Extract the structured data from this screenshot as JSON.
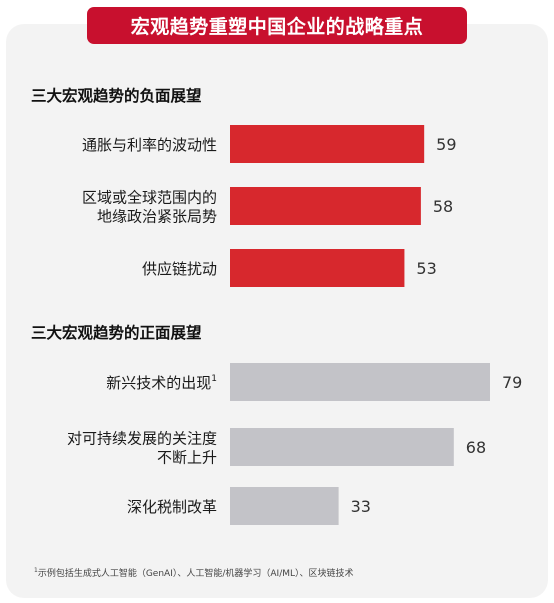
{
  "title": "宏观趋势重塑中国企业的战略重点",
  "footnote": "示例包括生成式人工智能（GenAI）、人工智能/机器学习（AI/ML）、区块链技术",
  "footnote_marker": "1",
  "colors": {
    "brand_red": "#c8102e",
    "negative_bar": "#d7282d",
    "positive_bar": "#c3c3c8",
    "card_bg": "#f3f3f3"
  },
  "chart_data": [
    {
      "type": "bar",
      "orientation": "horizontal",
      "title": "三大宏观趋势的负面展望",
      "categories": [
        "通胀与利率的波动性",
        "区域或全球范围内的\n地缘政治紧张局势",
        "供应链扰动"
      ],
      "values": [
        59,
        58,
        53
      ],
      "xlim": [
        0,
        80
      ],
      "grid": false,
      "data_labels": true
    },
    {
      "type": "bar",
      "orientation": "horizontal",
      "title": "三大宏观趋势的正面展望",
      "categories": [
        "新兴技术的出现",
        "对可持续发展的关注度\n不断上升",
        "深化税制改革"
      ],
      "category_footnotes": [
        "1",
        "",
        ""
      ],
      "values": [
        79,
        68,
        33
      ],
      "xlim": [
        0,
        80
      ],
      "grid": false,
      "data_labels": true
    }
  ]
}
